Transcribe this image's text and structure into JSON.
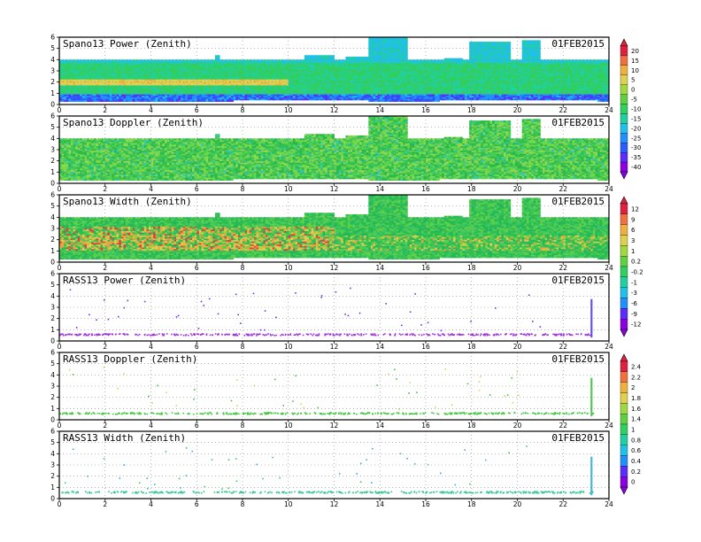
{
  "date": "01FEB2015",
  "chart_data": [
    {
      "type": "heatmap",
      "title": "Spano13 Power (Zenith)",
      "date": "01FEB2015",
      "x": [
        0,
        24
      ],
      "y": [
        0,
        6
      ],
      "xticks": [
        "0",
        "2",
        "4",
        "6",
        "8",
        "10",
        "12",
        "14",
        "16",
        "18",
        "20",
        "22",
        "24"
      ],
      "yticks": [
        "0",
        "1",
        "2",
        "3",
        "4",
        "5",
        "6"
      ],
      "grid": true,
      "colorbar": [
        "20",
        "15",
        "10",
        "5",
        "0",
        "-5",
        "-10",
        "-15",
        "-20",
        "-25",
        "-30",
        "-35",
        "-40"
      ]
    },
    {
      "type": "heatmap",
      "title": "Spano13 Doppler (Zenith)",
      "date": "01FEB2015",
      "x": [
        0,
        24
      ],
      "y": [
        0,
        6
      ],
      "xticks": [
        "0",
        "2",
        "4",
        "6",
        "8",
        "10",
        "12",
        "14",
        "16",
        "18",
        "20",
        "22",
        "24"
      ],
      "yticks": [
        "0",
        "1",
        "2",
        "3",
        "4",
        "5",
        "6"
      ],
      "grid": true
    },
    {
      "type": "heatmap",
      "title": "Spano13 Width (Zenith)",
      "date": "01FEB2015",
      "x": [
        0,
        24
      ],
      "y": [
        0,
        6
      ],
      "xticks": [
        "0",
        "2",
        "4",
        "6",
        "8",
        "10",
        "12",
        "14",
        "16",
        "18",
        "20",
        "22",
        "24"
      ],
      "yticks": [
        "0",
        "1",
        "2",
        "3",
        "4",
        "5",
        "6"
      ],
      "grid": true,
      "colorbar": [
        "12",
        "9",
        "6",
        "3",
        "1",
        "0.2",
        "-0.2",
        "-1",
        "-3",
        "-6",
        "-9",
        "-12"
      ]
    },
    {
      "type": "scatter",
      "title": "RASS13 Power (Zenith)",
      "date": "01FEB2015",
      "x": [
        0,
        24
      ],
      "y": [
        0,
        6
      ],
      "xticks": [
        "0",
        "2",
        "4",
        "6",
        "8",
        "10",
        "12",
        "14",
        "16",
        "18",
        "20",
        "22",
        "24"
      ],
      "yticks": [
        "0",
        "1",
        "2",
        "3",
        "4",
        "5",
        "6"
      ],
      "grid": true
    },
    {
      "type": "scatter",
      "title": "RASS13 Doppler (Zenith)",
      "date": "01FEB2015",
      "x": [
        0,
        24
      ],
      "y": [
        0,
        6
      ],
      "xticks": [
        "0",
        "2",
        "4",
        "6",
        "8",
        "10",
        "12",
        "14",
        "16",
        "18",
        "20",
        "22",
        "24"
      ],
      "yticks": [
        "0",
        "1",
        "2",
        "3",
        "4",
        "5",
        "6"
      ],
      "grid": true,
      "colorbar": [
        "2.4",
        "2.2",
        "2",
        "1.8",
        "1.6",
        "1.4",
        "1",
        "0.8",
        "0.6",
        "0.4",
        "0.2",
        "0"
      ]
    },
    {
      "type": "scatter",
      "title": "RASS13 Width (Zenith)",
      "date": "01FEB2015",
      "x": [
        0,
        24
      ],
      "y": [
        0,
        6
      ],
      "xticks": [
        "0",
        "2",
        "4",
        "6",
        "8",
        "10",
        "12",
        "14",
        "16",
        "18",
        "20",
        "22",
        "24"
      ],
      "yticks": [
        "0",
        "1",
        "2",
        "3",
        "4",
        "5",
        "6"
      ],
      "grid": true
    }
  ]
}
